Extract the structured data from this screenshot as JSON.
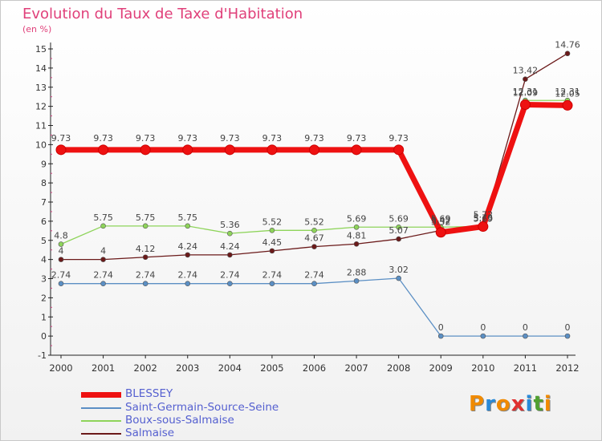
{
  "title": "Evolution du Taux de Taxe d'Habitation",
  "unit": "(en %)",
  "logo": {
    "letters": [
      "P",
      "r",
      "o",
      "x",
      "i",
      "t",
      "i"
    ],
    "colors": [
      "#f08a00",
      "#2a8ad8",
      "#f08a00",
      "#e03030",
      "#2a8ad8",
      "#50a030",
      "#f08a00"
    ]
  },
  "chart_data": {
    "type": "line",
    "categories": [
      "2000",
      "2001",
      "2002",
      "2003",
      "2004",
      "2005",
      "2006",
      "2007",
      "2008",
      "2009",
      "2010",
      "2011",
      "2012"
    ],
    "y_ticks": [
      "-1",
      "0",
      "1",
      "2",
      "3",
      "4",
      "5",
      "6",
      "7",
      "8",
      "9",
      "10",
      "11",
      "12",
      "13",
      "14",
      "15"
    ],
    "ylim": [
      -1,
      15
    ],
    "grid": false,
    "legend_position": "bottom-left",
    "series": [
      {
        "name": "BLESSEY",
        "color": "#ee1111",
        "values": [
          9.73,
          9.73,
          9.73,
          9.73,
          9.73,
          9.73,
          9.73,
          9.73,
          9.73,
          5.42,
          5.72,
          12.09,
          12.05
        ],
        "labels": [
          "9.73",
          "9.73",
          "9.73",
          "9.73",
          "9.73",
          "9.73",
          "9.73",
          "9.73",
          "9.73",
          "5.42",
          "5.72",
          "12.09",
          "12.05"
        ]
      },
      {
        "name": "Saint-Germain-Source-Seine",
        "color": "#5b8fc4",
        "values": [
          2.74,
          2.74,
          2.74,
          2.74,
          2.74,
          2.74,
          2.74,
          2.88,
          3.02,
          0,
          0,
          0,
          0
        ],
        "labels": [
          "2.74",
          "2.74",
          "2.74",
          "2.74",
          "2.74",
          "2.74",
          "2.74",
          "2.88",
          "3.02",
          "0",
          "0",
          "0",
          "0"
        ]
      },
      {
        "name": "Boux-sous-Salmaise",
        "color": "#8ed45a",
        "values": [
          4.8,
          5.75,
          5.75,
          5.75,
          5.36,
          5.52,
          5.52,
          5.69,
          5.69,
          5.69,
          5.73,
          12.31,
          12.31
        ],
        "labels": [
          "4.8",
          "5.75",
          "5.75",
          "5.75",
          "5.36",
          "5.52",
          "5.52",
          "5.69",
          "5.69",
          "5.69",
          "5.73",
          "12.31",
          "12.31"
        ]
      },
      {
        "name": "Salmaise",
        "color": "#6b1a1a",
        "values": [
          4,
          4,
          4.12,
          4.24,
          4.24,
          4.45,
          4.67,
          4.81,
          5.07,
          5.52,
          5.69,
          13.42,
          14.76
        ],
        "labels": [
          "4",
          "4",
          "4.12",
          "4.24",
          "4.24",
          "4.45",
          "4.67",
          "4.81",
          "5.07",
          "5.52",
          "5.69",
          "13.42",
          "14.76"
        ]
      }
    ]
  }
}
